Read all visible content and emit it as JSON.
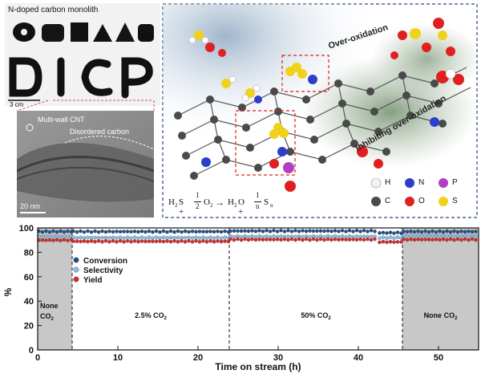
{
  "photo": {
    "title": "N-doped carbon monolith",
    "letters": "DICP",
    "scale": "3 cm"
  },
  "tem": {
    "label_cnt": "Multi-wall CNT",
    "label_carbon": "Disordered carbon",
    "scale": "20 nm"
  },
  "scheme": {
    "label_over": "Over-oxidation",
    "label_inhibit": "Inhibiting over-oxidation",
    "equation": {
      "lhs": "H",
      "lhs_sub": "2",
      "lhs2": "S +",
      "frac1_num": "1",
      "frac1_den": "2",
      "o2": "O",
      "o2_sub": "2",
      "arrow": "→",
      "rhs1": "H",
      "rhs1_sub": "2",
      "rhs1b": "O +",
      "frac2_num": "1",
      "frac2_den": "n",
      "rhs2": "S",
      "rhs2_sub": "n"
    },
    "legend": [
      {
        "symbol": "H",
        "color": "#f2f2f2"
      },
      {
        "symbol": "N",
        "color": "#2d3fc8"
      },
      {
        "symbol": "P",
        "color": "#b23fc0"
      },
      {
        "symbol": "C",
        "color": "#4a4a4a"
      },
      {
        "symbol": "O",
        "color": "#e02020"
      },
      {
        "symbol": "S",
        "color": "#f0d21a"
      }
    ]
  },
  "chart_data": {
    "type": "scatter",
    "xlabel": "Time on stream (h)",
    "ylabel": "%",
    "xlim": [
      0,
      55
    ],
    "ylim": [
      0,
      100
    ],
    "xticks": [
      0,
      10,
      20,
      30,
      40,
      50
    ],
    "yticks": [
      0,
      20,
      40,
      60,
      80,
      100
    ],
    "series": [
      {
        "name": "Conversion",
        "color": "#1f4f8c",
        "segments": [
          {
            "x": [
              0,
              4.3
            ],
            "y": 97
          },
          {
            "x": [
              4.3,
              23.9
            ],
            "y": 97
          },
          {
            "x": [
              23.9,
              42.5
            ],
            "y": 97.5
          },
          {
            "x": [
              42.5,
              45.5
            ],
            "y": 96
          },
          {
            "x": [
              45.5,
              55
            ],
            "y": 97
          }
        ]
      },
      {
        "name": "Selectivity",
        "color": "#8ec0e6",
        "segments": [
          {
            "x": [
              0,
              4.3
            ],
            "y": 93
          },
          {
            "x": [
              4.3,
              23.9
            ],
            "y": 92
          },
          {
            "x": [
              23.9,
              42.5
            ],
            "y": 93
          },
          {
            "x": [
              42.5,
              45.5
            ],
            "y": 92
          },
          {
            "x": [
              45.5,
              55
            ],
            "y": 93.5
          }
        ]
      },
      {
        "name": "Yield",
        "color": "#d92b2b",
        "segments": [
          {
            "x": [
              0,
              4.3
            ],
            "y": 90
          },
          {
            "x": [
              4.3,
              23.9
            ],
            "y": 89
          },
          {
            "x": [
              23.9,
              42.5
            ],
            "y": 90.5
          },
          {
            "x": [
              42.5,
              45.5
            ],
            "y": 88.5
          },
          {
            "x": [
              45.5,
              55
            ],
            "y": 90.5
          }
        ]
      }
    ],
    "regions": [
      {
        "label": "None",
        "label2": "CO",
        "sub": "2",
        "x": [
          0,
          4.3
        ],
        "shaded": true
      },
      {
        "label": "2.5% CO",
        "sub": "2",
        "x": [
          4.3,
          23.9
        ],
        "shaded": false
      },
      {
        "label": "50% CO",
        "sub": "2",
        "x": [
          23.9,
          45.5
        ],
        "shaded": false
      },
      {
        "label": "None CO",
        "sub": "2",
        "x": [
          45.5,
          55
        ],
        "shaded": true
      }
    ],
    "dividers": [
      4.3,
      23.9,
      45.5
    ]
  }
}
